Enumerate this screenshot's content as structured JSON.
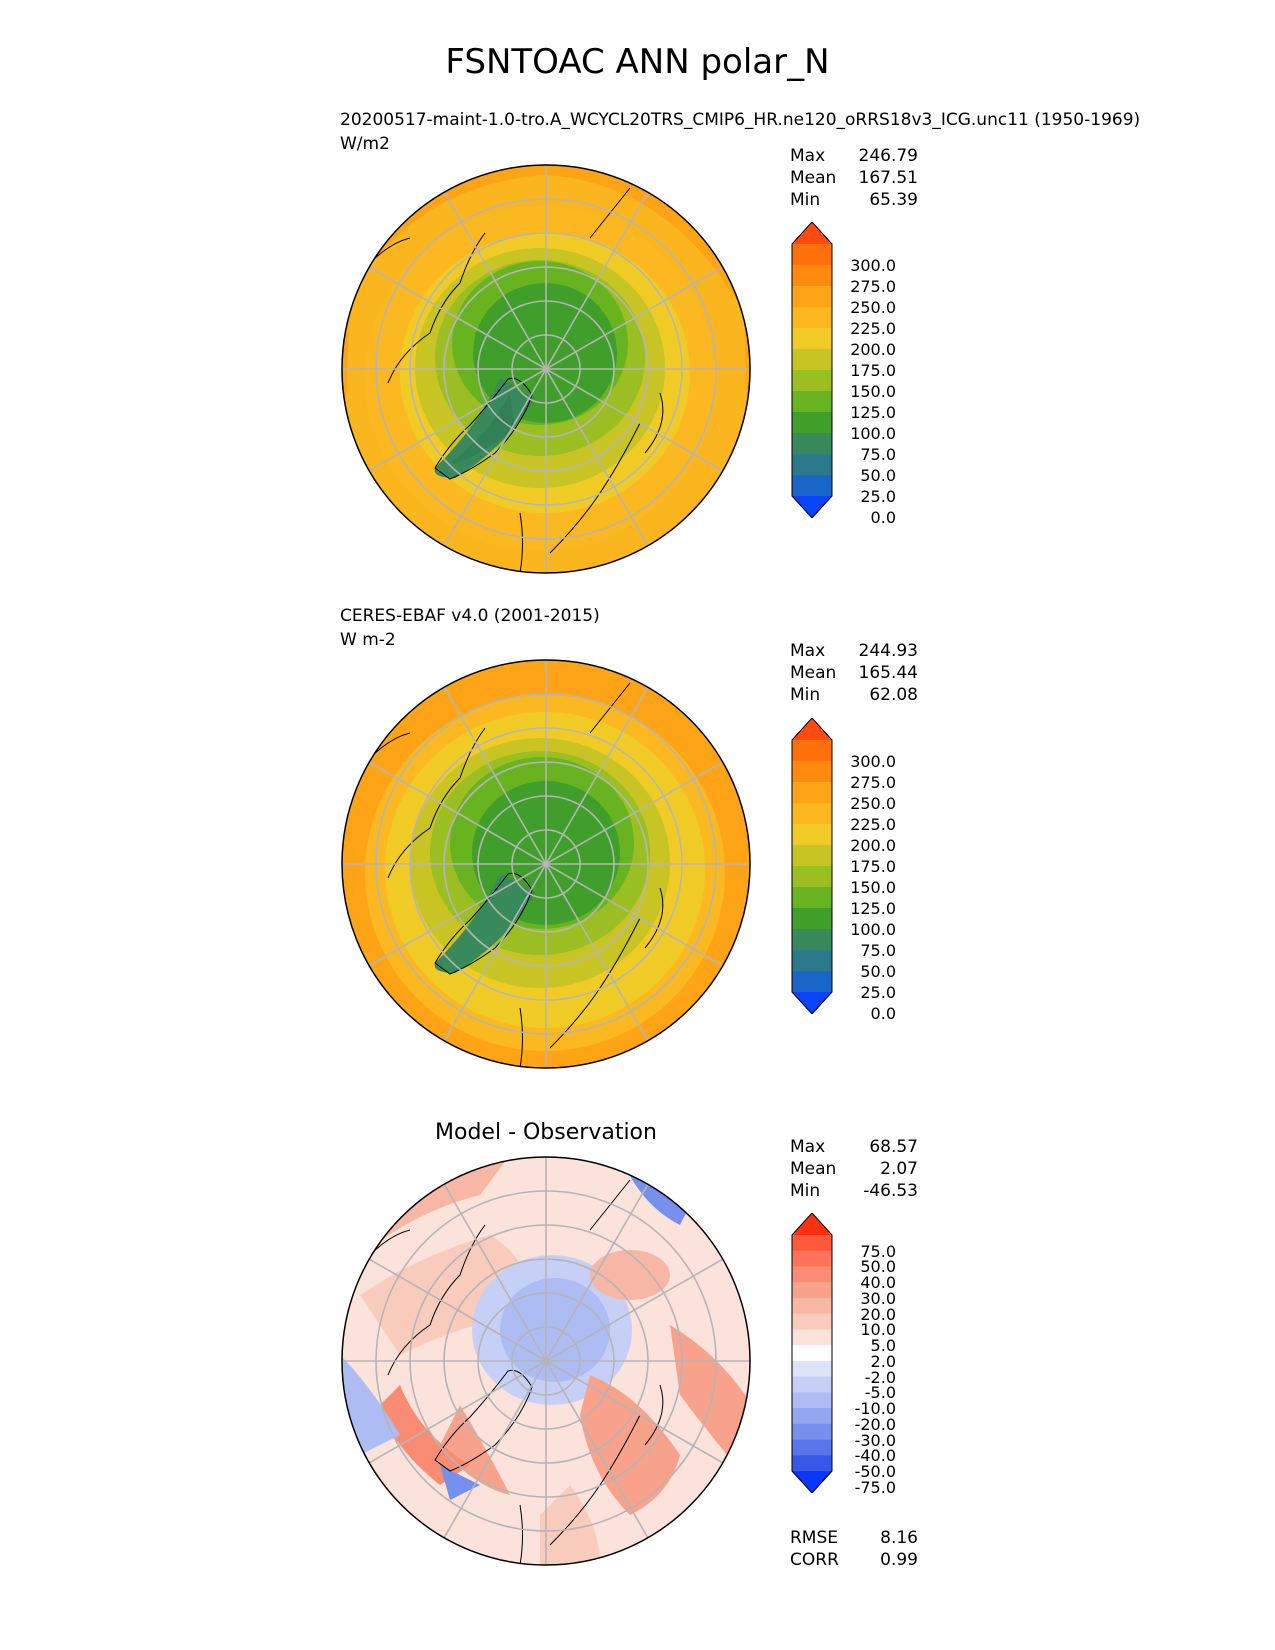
{
  "title": "FSNTOAC ANN polar_N",
  "panels": [
    {
      "subtitle": "20200517-maint-1.0-tro.A_WCYCL20TRS_CMIP6_HR.ne120_oRRS18v3_ICG.unc11 (1950-1969)",
      "units": "W/m2",
      "stats": {
        "max_label": "Max",
        "max": "246.79",
        "mean_label": "Mean",
        "mean": "167.51",
        "min_label": "Min",
        "min": "65.39"
      },
      "colorbar": {
        "ticks": [
          "300.0",
          "275.0",
          "250.0",
          "225.0",
          "200.0",
          "175.0",
          "150.0",
          "125.0",
          "100.0",
          "75.0",
          "50.0",
          "25.0",
          "0.0"
        ],
        "colors": [
          "#ff4a10",
          "#ff6f0a",
          "#ff8a0c",
          "#ffa417",
          "#fbb820",
          "#f0cb26",
          "#c8c424",
          "#9bbe22",
          "#68b320",
          "#3f9f2a",
          "#388a5c",
          "#2a7a8c",
          "#1766c8",
          "#0a44ff"
        ]
      }
    },
    {
      "subtitle": "CERES-EBAF v4.0 (2001-2015)",
      "units": "W m-2",
      "stats": {
        "max_label": "Max",
        "max": "244.93",
        "mean_label": "Mean",
        "mean": "165.44",
        "min_label": "Min",
        "min": "62.08"
      },
      "colorbar": {
        "ticks": [
          "300.0",
          "275.0",
          "250.0",
          "225.0",
          "200.0",
          "175.0",
          "150.0",
          "125.0",
          "100.0",
          "75.0",
          "50.0",
          "25.0",
          "0.0"
        ],
        "colors": [
          "#ff4a10",
          "#ff6f0a",
          "#ff8a0c",
          "#ffa417",
          "#fbb820",
          "#f0cb26",
          "#c8c424",
          "#9bbe22",
          "#68b320",
          "#3f9f2a",
          "#388a5c",
          "#2a7a8c",
          "#1766c8",
          "#0a44ff"
        ]
      }
    },
    {
      "subtitle": "Model - Observation",
      "units": "",
      "stats": {
        "max_label": "Max",
        "max": "68.57",
        "mean_label": "Mean",
        "mean": "2.07",
        "min_label": "Min",
        "min": "-46.53"
      },
      "colorbar": {
        "ticks": [
          "75.0",
          "50.0",
          "40.0",
          "30.0",
          "20.0",
          "10.0",
          "5.0",
          "2.0",
          "-2.0",
          "-5.0",
          "-10.0",
          "-20.0",
          "-30.0",
          "-40.0",
          "-50.0",
          "-75.0"
        ],
        "colors": [
          "#ff3010",
          "#ff5a3c",
          "#fb7459",
          "#f98c72",
          "#f8a28c",
          "#f8b6a4",
          "#f9cbbd",
          "#fbe2da",
          "#ffffff",
          "#dde3f8",
          "#c6d0f6",
          "#adbcf3",
          "#93a7f0",
          "#7790ed",
          "#5876ea",
          "#3858e8",
          "#0a38ff"
        ]
      },
      "error_stats": {
        "rmse_label": "RMSE",
        "rmse": "8.16",
        "corr_label": "CORR",
        "corr": "0.99"
      }
    }
  ]
}
